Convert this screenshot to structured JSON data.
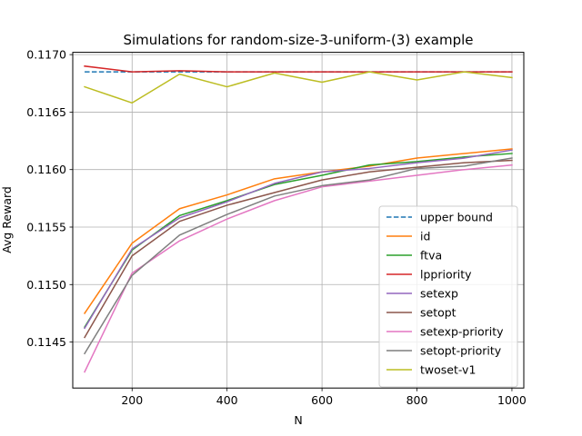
{
  "chart_data": {
    "type": "line",
    "title": "Simulations for random-size-3-uniform-(3) example",
    "xlabel": "N",
    "ylabel": "Avg Reward",
    "xlim": [
      75,
      1025
    ],
    "ylim": [
      0.1141,
      0.11702
    ],
    "xticks": [
      200,
      400,
      600,
      800,
      1000
    ],
    "yticks": [
      0.1145,
      0.115,
      0.1155,
      0.116,
      0.1165,
      0.117
    ],
    "ytick_labels": [
      "0.1145",
      "0.1150",
      "0.1155",
      "0.1160",
      "0.1165",
      "0.1170"
    ],
    "grid": true,
    "legend_position": "lower-right",
    "x": [
      100,
      200,
      300,
      400,
      500,
      600,
      700,
      800,
      900,
      1000
    ],
    "series": [
      {
        "name": "upper bound",
        "color": "#1f77b4",
        "dashed": true,
        "values": [
          0.11685,
          0.11685,
          0.11685,
          0.11685,
          0.11685,
          0.11685,
          0.11685,
          0.11685,
          0.11685,
          0.11685
        ]
      },
      {
        "name": "id",
        "color": "#ff7f0e",
        "dashed": false,
        "values": [
          0.11475,
          0.11536,
          0.11566,
          0.11578,
          0.11592,
          0.11598,
          0.11603,
          0.1161,
          0.11614,
          0.11618
        ]
      },
      {
        "name": "ftva",
        "color": "#2ca02c",
        "dashed": false,
        "values": [
          0.11463,
          0.1153,
          0.1156,
          0.11573,
          0.11587,
          0.11595,
          0.11604,
          0.11607,
          0.11611,
          0.11614
        ]
      },
      {
        "name": "lppriority",
        "color": "#d62728",
        "dashed": false,
        "values": [
          0.1169,
          0.11685,
          0.11686,
          0.11685,
          0.11685,
          0.11685,
          0.11685,
          0.11685,
          0.11685,
          0.11685
        ]
      },
      {
        "name": "setexp",
        "color": "#9467bd",
        "dashed": false,
        "values": [
          0.11462,
          0.11531,
          0.11558,
          0.11572,
          0.11588,
          0.11598,
          0.11601,
          0.11606,
          0.1161,
          0.11617
        ]
      },
      {
        "name": "setopt",
        "color": "#8c564b",
        "dashed": false,
        "values": [
          0.11454,
          0.11525,
          0.11555,
          0.11569,
          0.1158,
          0.11591,
          0.11598,
          0.11602,
          0.11606,
          0.11608
        ]
      },
      {
        "name": "setexp-priority",
        "color": "#e377c2",
        "dashed": false,
        "values": [
          0.11424,
          0.1151,
          0.11538,
          0.11557,
          0.11573,
          0.11585,
          0.1159,
          0.11595,
          0.116,
          0.11604
        ]
      },
      {
        "name": "setopt-priority",
        "color": "#7f7f7f",
        "dashed": false,
        "values": [
          0.1144,
          0.11508,
          0.11543,
          0.11561,
          0.11577,
          0.11586,
          0.11591,
          0.11601,
          0.11603,
          0.1161
        ]
      },
      {
        "name": "twoset-v1",
        "color": "#bcbd22",
        "dashed": false,
        "values": [
          0.11672,
          0.11658,
          0.11683,
          0.11672,
          0.11684,
          0.11676,
          0.11685,
          0.11678,
          0.11685,
          0.1168
        ]
      }
    ]
  }
}
